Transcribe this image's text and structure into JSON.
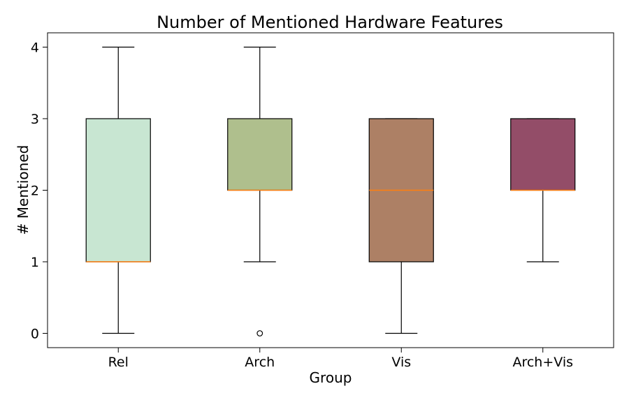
{
  "chart_data": {
    "type": "box",
    "title": "Number of Mentioned Hardware Features",
    "xlabel": "Group",
    "ylabel": "# Mentioned",
    "ylim": [
      -0.2,
      4.2
    ],
    "yticks": [
      0,
      1,
      2,
      3,
      4
    ],
    "grid": false,
    "categories": [
      "Rel",
      "Arch",
      "Vis",
      "Arch+Vis"
    ],
    "boxes": [
      {
        "category": "Rel",
        "whisker_low": 0,
        "q1": 1,
        "median": 1,
        "q3": 3,
        "whisker_high": 4,
        "outliers": [],
        "color": "#c8e6d2"
      },
      {
        "category": "Arch",
        "whisker_low": 1,
        "q1": 2,
        "median": 2,
        "q3": 3,
        "whisker_high": 4,
        "outliers": [
          0
        ],
        "color": "#afbf8d"
      },
      {
        "category": "Vis",
        "whisker_low": 0,
        "q1": 1,
        "median": 2,
        "q3": 3,
        "whisker_high": 3,
        "outliers": [],
        "color": "#ad8065"
      },
      {
        "category": "Arch+Vis",
        "whisker_low": 1,
        "q1": 2,
        "median": 2,
        "q3": 3,
        "whisker_high": 3,
        "outliers": [],
        "color": "#934d68"
      }
    ],
    "median_color": "#ff7f0e"
  }
}
